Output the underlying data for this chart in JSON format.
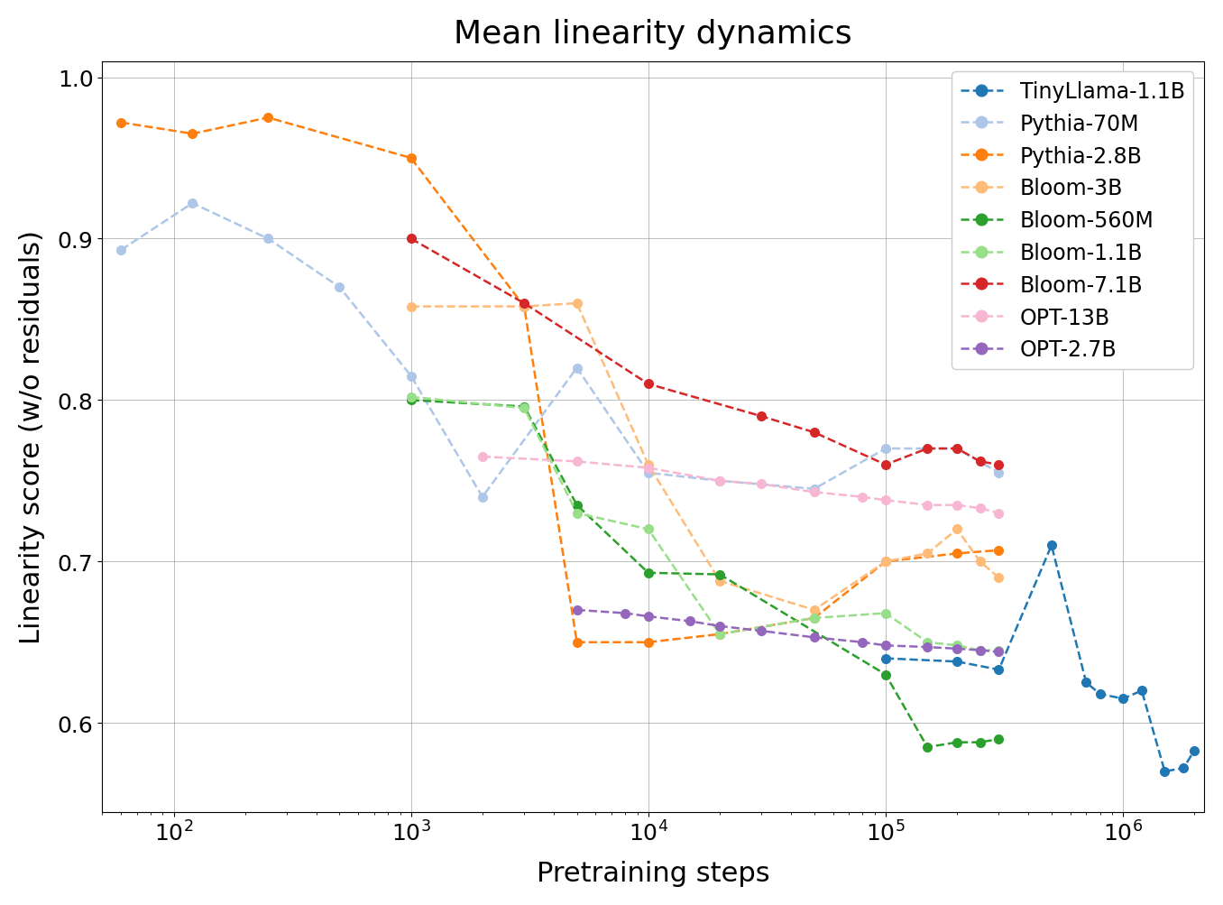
{
  "title": "Mean linearity dynamics",
  "xlabel": "Pretraining steps",
  "ylabel": "Linearity score (w/o residuals)",
  "ylim": [
    0.545,
    1.01
  ],
  "xlim": [
    50,
    2200000
  ],
  "series": [
    {
      "label": "TinyLlama-1.1B",
      "color": "#1f77b4",
      "x": [
        100000,
        200000,
        300000,
        500000,
        700000,
        800000,
        1000000,
        1200000,
        1500000,
        1800000,
        2000000
      ],
      "y": [
        0.64,
        0.638,
        0.633,
        0.71,
        0.625,
        0.618,
        0.615,
        0.62,
        0.57,
        0.572,
        0.583
      ]
    },
    {
      "label": "Pythia-70M",
      "color": "#aec7e8",
      "x": [
        60,
        120,
        250,
        500,
        1000,
        2000,
        5000,
        10000,
        20000,
        50000,
        100000,
        200000,
        300000
      ],
      "y": [
        0.893,
        0.922,
        0.9,
        0.87,
        0.815,
        0.74,
        0.82,
        0.755,
        0.75,
        0.745,
        0.77,
        0.77,
        0.755
      ]
    },
    {
      "label": "Pythia-2.8B",
      "color": "#ff7f0e",
      "x": [
        60,
        120,
        250,
        1000,
        3000,
        5000,
        10000,
        20000,
        50000,
        100000,
        200000,
        300000
      ],
      "y": [
        0.972,
        0.965,
        0.975,
        0.95,
        0.858,
        0.65,
        0.65,
        0.655,
        0.665,
        0.7,
        0.705,
        0.707
      ]
    },
    {
      "label": "Bloom-3B",
      "color": "#ffbb78",
      "x": [
        1000,
        3000,
        5000,
        10000,
        20000,
        50000,
        100000,
        150000,
        200000,
        250000,
        300000
      ],
      "y": [
        0.858,
        0.858,
        0.86,
        0.76,
        0.688,
        0.67,
        0.7,
        0.705,
        0.72,
        0.7,
        0.69
      ]
    },
    {
      "label": "Bloom-560M",
      "color": "#2ca02c",
      "x": [
        1000,
        3000,
        5000,
        10000,
        20000,
        100000,
        150000,
        200000,
        250000,
        300000
      ],
      "y": [
        0.8,
        0.796,
        0.735,
        0.693,
        0.692,
        0.63,
        0.585,
        0.588,
        0.588,
        0.59
      ]
    },
    {
      "label": "Bloom-1.1B",
      "color": "#98df8a",
      "x": [
        1000,
        3000,
        5000,
        10000,
        20000,
        50000,
        100000,
        150000,
        200000,
        250000,
        300000
      ],
      "y": [
        0.802,
        0.795,
        0.73,
        0.72,
        0.655,
        0.665,
        0.668,
        0.65,
        0.648,
        0.645,
        0.645
      ]
    },
    {
      "label": "Bloom-7.1B",
      "color": "#d62728",
      "x": [
        1000,
        3000,
        10000,
        30000,
        50000,
        100000,
        150000,
        200000,
        250000,
        300000
      ],
      "y": [
        0.9,
        0.86,
        0.81,
        0.79,
        0.78,
        0.76,
        0.77,
        0.77,
        0.762,
        0.76
      ]
    },
    {
      "label": "OPT-13B",
      "color": "#f7b6d2",
      "x": [
        2000,
        5000,
        10000,
        20000,
        30000,
        50000,
        80000,
        100000,
        150000,
        200000,
        250000,
        300000
      ],
      "y": [
        0.765,
        0.762,
        0.758,
        0.75,
        0.748,
        0.743,
        0.74,
        0.738,
        0.735,
        0.735,
        0.733,
        0.73
      ]
    },
    {
      "label": "OPT-2.7B",
      "color": "#9467bd",
      "x": [
        5000,
        8000,
        10000,
        15000,
        20000,
        30000,
        50000,
        80000,
        100000,
        150000,
        200000,
        250000,
        300000
      ],
      "y": [
        0.67,
        0.668,
        0.666,
        0.663,
        0.66,
        0.657,
        0.653,
        0.65,
        0.648,
        0.647,
        0.646,
        0.645,
        0.644
      ]
    }
  ],
  "title_fontsize": 26,
  "label_fontsize": 22,
  "tick_fontsize": 18,
  "legend_fontsize": 17,
  "figsize": [
    13.56,
    10.04
  ]
}
